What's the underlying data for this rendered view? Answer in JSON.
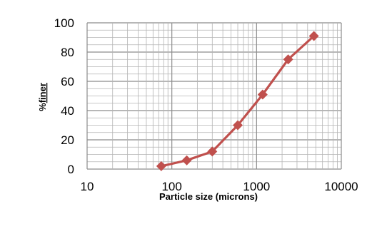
{
  "chart_data": {
    "type": "line",
    "title": "",
    "xlabel": "Particle size (microns)",
    "ylabel": "%finer",
    "ylabel_prefix": "%",
    "ylabel_main": "finer",
    "x_scale": "log",
    "xlim": [
      10,
      10000
    ],
    "ylim": [
      0,
      100
    ],
    "x_ticks": [
      10,
      100,
      1000,
      10000
    ],
    "x_tick_labels": [
      "10",
      "100",
      "1000",
      "10000"
    ],
    "y_ticks": [
      0,
      20,
      40,
      60,
      80,
      100
    ],
    "y_tick_labels": [
      "0",
      "20",
      "40",
      "60",
      "80",
      "100"
    ],
    "grid": true,
    "series": [
      {
        "marker": "diamond",
        "color": "#c0504d",
        "x": [
          75,
          150,
          300,
          600,
          1180,
          2360,
          4750
        ],
        "y": [
          2,
          6,
          12,
          30,
          51,
          75,
          91
        ]
      }
    ]
  }
}
